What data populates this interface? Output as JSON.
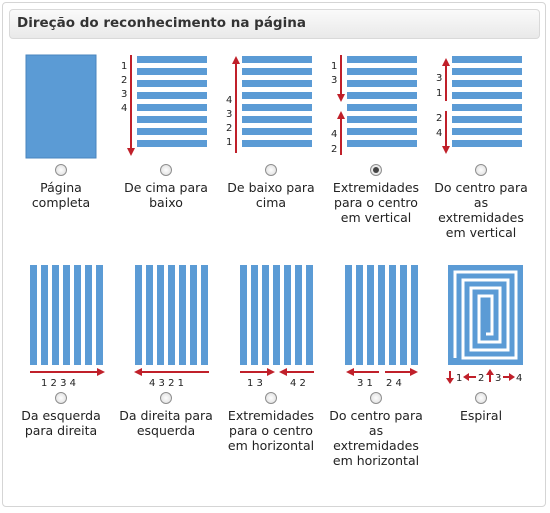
{
  "title": "Direção do reconhecimento na página",
  "selected": "extremidades-vertical",
  "colors": {
    "bar": "#5b9bd5",
    "arrow": "#c0202a",
    "text": "#222222"
  },
  "options": [
    {
      "id": "pagina-completa",
      "label": "Página completa",
      "selected": false
    },
    {
      "id": "cima-baixo",
      "label": "De cima para baixo",
      "selected": false,
      "numbers": [
        "1",
        "2",
        "3",
        "4"
      ]
    },
    {
      "id": "baixo-cima",
      "label": "De baixo para cima",
      "selected": false,
      "numbers": [
        "4",
        "3",
        "2",
        "1"
      ]
    },
    {
      "id": "extremidades-vertical",
      "label": "Extremidades para o centro em vertical",
      "selected": true,
      "numbers": [
        "1",
        "3",
        "4",
        "2"
      ]
    },
    {
      "id": "centro-vertical",
      "label": "Do centro para as extremidades em vertical",
      "selected": false,
      "numbers": [
        "3",
        "1",
        "2",
        "4"
      ]
    },
    {
      "id": "esquerda-direita",
      "label": "Da esquerda para direita",
      "selected": false,
      "caption": "1 2 3 4"
    },
    {
      "id": "direita-esquerda",
      "label": "Da direita para esquerda",
      "selected": false,
      "caption": "4 3 2 1"
    },
    {
      "id": "extremidades-horizontal",
      "label": "Extremidades para o centro em horizontal",
      "selected": false,
      "caption_left": "1 3",
      "caption_right": "4 2"
    },
    {
      "id": "centro-horizontal",
      "label": "Do centro para as extremidades em horizontal",
      "selected": false,
      "caption_left": "3 1",
      "caption_right": "2 4"
    },
    {
      "id": "espiral",
      "label": "Espiral",
      "selected": false,
      "numbers": [
        "1",
        "2",
        "3",
        "4"
      ]
    }
  ]
}
